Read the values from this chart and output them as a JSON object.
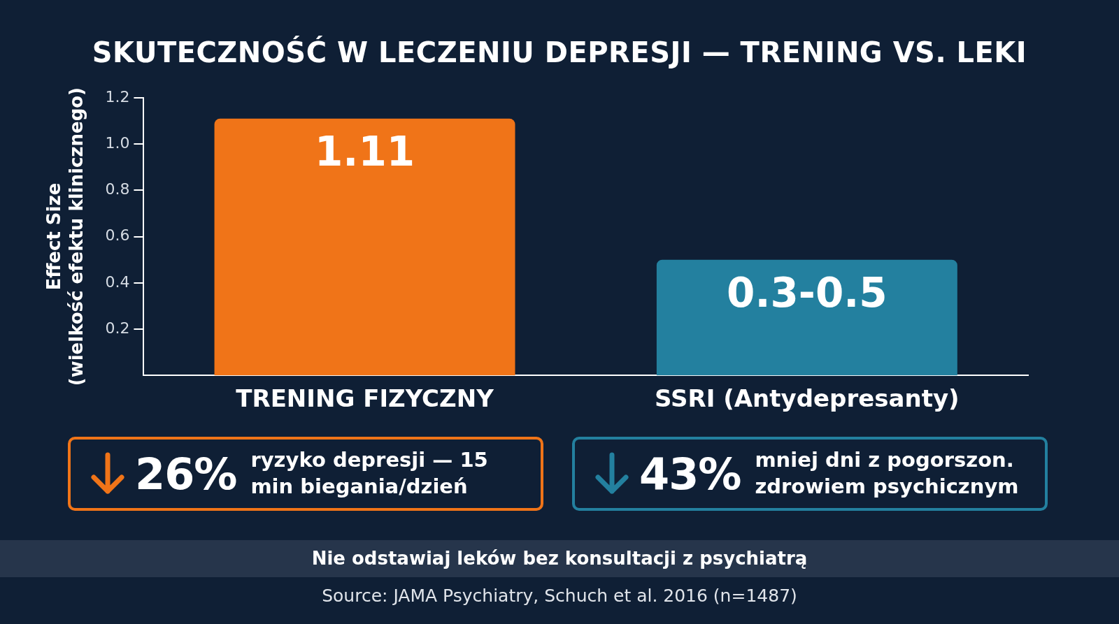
{
  "chart_data": {
    "type": "bar",
    "title": "SKUTECZNOŚĆ W LECZENIU DEPRESJI — TRENING VS. LEKI",
    "ylabel": "Effect Size\n(wielkość efektu klinicznego)",
    "categories": [
      "TRENING FIZYCZNY",
      "SSRI (Antydepresanty)"
    ],
    "values": [
      1.11,
      0.5
    ],
    "colors": [
      "#f07418",
      "#23809f"
    ],
    "value_labels": [
      "1.11",
      "0.3-0.5"
    ],
    "ylim": [
      0,
      1.2
    ],
    "yticks": [
      0.2,
      0.4,
      0.6,
      0.8,
      {
        "value": 1,
        "label": "1.0"
      },
      1.2
    ],
    "grid": false,
    "annotations": [
      "26%",
      "ryzyko depresji — 15 min biegania/dzień",
      "43%",
      "mniej dni z pogorszon. zdrowiem psychicznym",
      "Nie odstawiaj leków bez konsultacji z psychiatrą",
      "Source: JAMA Psychiatry, Schuch et al. 2016 (n=1487)"
    ]
  }
}
